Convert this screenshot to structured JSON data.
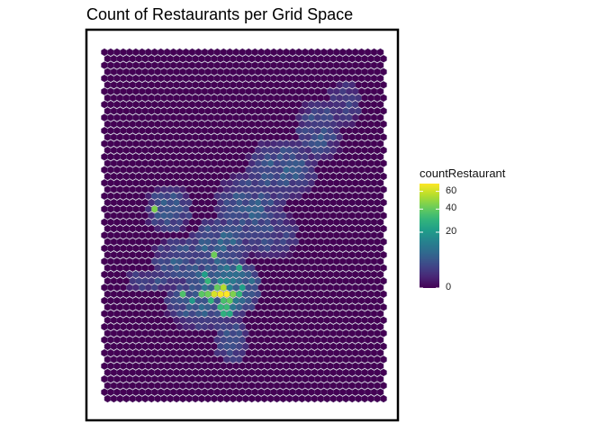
{
  "chart_data": {
    "type": "heatmap",
    "title": "Count of Restaurants per Grid Space",
    "xlabel": "",
    "ylabel": "",
    "grid": false,
    "legend_placement": "right",
    "legend": {
      "title": "countRestaurant",
      "ticks": [
        {
          "label": "60",
          "value": 60
        },
        {
          "label": "40",
          "value": 40
        },
        {
          "label": "20",
          "value": 20
        },
        {
          "label": "0",
          "value": 0
        }
      ],
      "min": 0,
      "max": 70,
      "colormap": "viridis"
    },
    "hexgrid": {
      "cols": 45,
      "rows": 54,
      "base_value": 0
    },
    "hotspots": [
      {
        "col": 19,
        "row": 37,
        "value": 70
      },
      {
        "col": 18,
        "row": 37,
        "value": 68
      },
      {
        "col": 17,
        "row": 37,
        "value": 62
      },
      {
        "col": 20,
        "row": 37,
        "value": 45
      },
      {
        "col": 19,
        "row": 36,
        "value": 55
      },
      {
        "col": 18,
        "row": 36,
        "value": 40
      },
      {
        "col": 16,
        "row": 37,
        "value": 42
      },
      {
        "col": 15,
        "row": 37,
        "value": 38
      },
      {
        "col": 12,
        "row": 37,
        "value": 36
      },
      {
        "col": 20,
        "row": 38,
        "value": 40
      },
      {
        "col": 19,
        "row": 38,
        "value": 35
      },
      {
        "col": 21,
        "row": 37,
        "value": 30
      },
      {
        "col": 17,
        "row": 38,
        "value": 28
      },
      {
        "col": 18,
        "row": 39,
        "value": 30
      },
      {
        "col": 19,
        "row": 40,
        "value": 28
      },
      {
        "col": 20,
        "row": 40,
        "value": 25
      },
      {
        "col": 19,
        "row": 39,
        "value": 32
      },
      {
        "col": 17,
        "row": 31,
        "value": 42
      },
      {
        "col": 16,
        "row": 35,
        "value": 30
      },
      {
        "col": 8,
        "row": 24,
        "value": 45
      },
      {
        "col": 21,
        "row": 33,
        "value": 25
      },
      {
        "col": 16,
        "row": 34,
        "value": 22
      },
      {
        "col": 14,
        "row": 38,
        "value": 20
      },
      {
        "col": 22,
        "row": 36,
        "value": 22
      }
    ],
    "regions": [
      {
        "cx": 19,
        "cy": 36,
        "rx": 6,
        "ry": 5,
        "value": 14
      },
      {
        "cx": 18,
        "cy": 30,
        "rx": 5,
        "ry": 5,
        "value": 8
      },
      {
        "cx": 16,
        "cy": 38,
        "rx": 7,
        "ry": 5,
        "value": 7
      },
      {
        "cx": 12,
        "cy": 32,
        "rx": 5,
        "ry": 4,
        "value": 6
      },
      {
        "cx": 10,
        "cy": 24,
        "rx": 4,
        "ry": 4,
        "value": 6
      },
      {
        "cx": 23,
        "cy": 24,
        "rx": 6,
        "ry": 6,
        "value": 6
      },
      {
        "cx": 28,
        "cy": 18,
        "rx": 6,
        "ry": 5,
        "value": 6
      },
      {
        "cx": 34,
        "cy": 12,
        "rx": 4,
        "ry": 5,
        "value": 5
      },
      {
        "cx": 20,
        "cy": 44,
        "rx": 3,
        "ry": 4,
        "value": 5
      },
      {
        "cx": 7,
        "cy": 35,
        "rx": 4,
        "ry": 2,
        "value": 4
      },
      {
        "cx": 38,
        "cy": 8,
        "rx": 3,
        "ry": 4,
        "value": 3
      },
      {
        "cx": 26,
        "cy": 28,
        "rx": 5,
        "ry": 4,
        "value": 4
      }
    ]
  }
}
